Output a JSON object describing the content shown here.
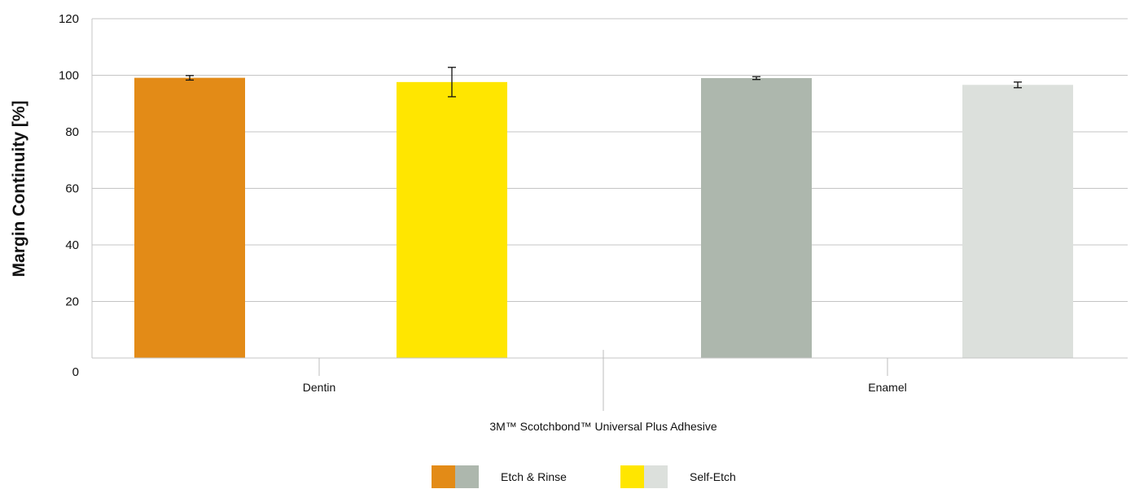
{
  "chart_data": {
    "type": "bar",
    "title": "",
    "ylabel": "Margin Continuity [%]",
    "xlabel": "3M™ Scotchbond™ Universal Plus Adhesive",
    "ylim": [
      0,
      120
    ],
    "yticks": [
      "0",
      "20",
      "40",
      "60",
      "80",
      "100",
      "120"
    ],
    "grid": true,
    "categories": [
      "Dentin",
      "Enamel"
    ],
    "bars": [
      {
        "category": "Dentin",
        "series": "Etch & Rinse",
        "value": 99.1,
        "error": 0.8,
        "color": "#e38b17"
      },
      {
        "category": "Dentin",
        "series": "Self-Etch",
        "value": 97.6,
        "error": 5.2,
        "color": "#ffe600"
      },
      {
        "category": "Enamel",
        "series": "Etch & Rinse",
        "value": 99.0,
        "error": 0.5,
        "color": "#adb7ad"
      },
      {
        "category": "Enamel",
        "series": "Self-Etch",
        "value": 96.6,
        "error": 1.0,
        "color": "#dce0dc"
      }
    ],
    "legend": {
      "position": "bottom",
      "items": [
        {
          "label": "Etch & Rinse",
          "colors": [
            "#e38b17",
            "#adb7ad"
          ]
        },
        {
          "label": "Self-Etch",
          "colors": [
            "#ffe600",
            "#dce0dc"
          ]
        }
      ]
    }
  }
}
